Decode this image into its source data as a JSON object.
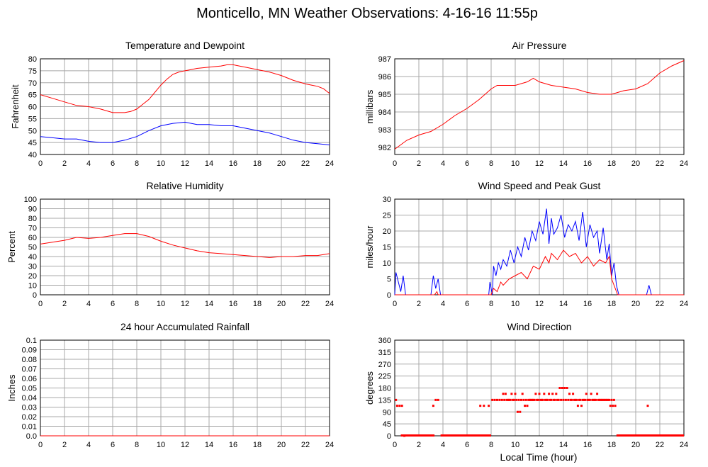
{
  "page_title": "Monticello, MN Weather Observations: 4-16-16 11:55p",
  "x_axis_label": "Local Time (hour)",
  "colors": {
    "red": "#ff0000",
    "blue": "#0000ff",
    "grid": "#a8a8a8"
  },
  "chart_data": [
    {
      "id": "temp",
      "type": "line",
      "title": "Temperature and Dewpoint",
      "ylabel": "Fahrenheit",
      "xlim": [
        0,
        24
      ],
      "x_ticks": [
        0,
        2,
        4,
        6,
        8,
        10,
        12,
        14,
        16,
        18,
        20,
        22,
        24
      ],
      "ylim": [
        40,
        80
      ],
      "y_ticks": [
        40,
        45,
        50,
        55,
        60,
        65,
        70,
        75,
        80
      ],
      "grid": true,
      "series": [
        {
          "color": "red",
          "x": [
            0,
            1,
            2,
            3,
            4,
            5,
            6,
            7,
            7.5,
            8,
            8.5,
            9,
            9.5,
            10,
            10.5,
            11,
            11.5,
            12,
            12.5,
            13,
            14,
            15,
            15.5,
            16,
            16.5,
            17,
            18,
            19,
            20,
            21,
            22,
            22.5,
            23,
            23.5,
            24
          ],
          "values": [
            65,
            63.5,
            62,
            60.5,
            60,
            59,
            57.5,
            57.5,
            58,
            59,
            61,
            63,
            66,
            69,
            71.5,
            73.5,
            74.5,
            75,
            75.5,
            76,
            76.5,
            77,
            77.5,
            77.5,
            77,
            76.5,
            75.5,
            74.5,
            73,
            71,
            69.5,
            69,
            68.5,
            67.5,
            65.5
          ]
        },
        {
          "color": "blue",
          "x": [
            0,
            1,
            2,
            3,
            4,
            5,
            6,
            7,
            8,
            9,
            10,
            11,
            12,
            13,
            14,
            15,
            16,
            17,
            18,
            19,
            20,
            21,
            22,
            23,
            24
          ],
          "values": [
            47.5,
            47,
            46.5,
            46.5,
            45.5,
            45,
            45,
            46,
            47.5,
            50,
            52,
            53,
            53.5,
            52.5,
            52.5,
            52,
            52,
            51,
            50,
            49,
            47.5,
            46,
            45,
            44.5,
            44
          ]
        }
      ]
    },
    {
      "id": "pressure",
      "type": "line",
      "title": "Air Pressure",
      "ylabel": "millibars",
      "xlim": [
        0,
        24
      ],
      "x_ticks": [
        0,
        2,
        4,
        6,
        8,
        10,
        12,
        14,
        16,
        18,
        20,
        22,
        24
      ],
      "ylim": [
        981.6,
        987
      ],
      "y_ticks": [
        982,
        983,
        984,
        985,
        986,
        987
      ],
      "grid": true,
      "series": [
        {
          "color": "red",
          "x": [
            0,
            1,
            2,
            3,
            4,
            5,
            6,
            7,
            8,
            8.5,
            9,
            10,
            11,
            11.5,
            12,
            13,
            14,
            15,
            16,
            17,
            18,
            19,
            20,
            21,
            22,
            23,
            24
          ],
          "values": [
            981.9,
            982.4,
            982.7,
            982.9,
            983.3,
            983.8,
            984.2,
            984.7,
            985.3,
            985.5,
            985.5,
            985.5,
            985.7,
            985.9,
            985.7,
            985.5,
            985.4,
            985.3,
            985.1,
            985.0,
            985.0,
            985.2,
            985.3,
            985.6,
            986.2,
            986.6,
            986.9
          ]
        }
      ]
    },
    {
      "id": "humidity",
      "type": "line",
      "title": "Relative Humidity",
      "ylabel": "Percent",
      "xlim": [
        0,
        24
      ],
      "x_ticks": [
        0,
        2,
        4,
        6,
        8,
        10,
        12,
        14,
        16,
        18,
        20,
        22,
        24
      ],
      "ylim": [
        0,
        100
      ],
      "y_ticks": [
        0,
        10,
        20,
        30,
        40,
        50,
        60,
        70,
        80,
        90,
        100
      ],
      "grid": true,
      "series": [
        {
          "color": "red",
          "x": [
            0,
            1,
            2,
            3,
            4,
            5,
            6,
            7,
            8,
            9,
            10,
            11,
            12,
            13,
            14,
            15,
            16,
            17,
            18,
            19,
            20,
            21,
            22,
            23,
            24
          ],
          "values": [
            53,
            55,
            57,
            60,
            59,
            60,
            62,
            64,
            64,
            61,
            56,
            52,
            49,
            46,
            44,
            43,
            42,
            41,
            40,
            39,
            40,
            40,
            41,
            41,
            43
          ]
        }
      ]
    },
    {
      "id": "wind",
      "type": "line",
      "title": "Wind Speed and Peak Gust",
      "ylabel": "miles/hour",
      "xlim": [
        0,
        24
      ],
      "x_ticks": [
        0,
        2,
        4,
        6,
        8,
        10,
        12,
        14,
        16,
        18,
        20,
        22,
        24
      ],
      "ylim": [
        0,
        30
      ],
      "y_ticks": [
        0,
        5,
        10,
        15,
        20,
        25,
        30
      ],
      "grid": true,
      "series": [
        {
          "color": "blue",
          "x": [
            0,
            0.1,
            0.3,
            0.5,
            0.7,
            0.9,
            3,
            3.2,
            3.4,
            3.6,
            3.8,
            7.8,
            7.9,
            8.1,
            8.2,
            8.4,
            8.6,
            8.8,
            9,
            9.3,
            9.6,
            9.9,
            10.2,
            10.5,
            10.8,
            11.1,
            11.4,
            11.7,
            12,
            12.3,
            12.6,
            12.8,
            13,
            13.2,
            13.5,
            13.8,
            14.1,
            14.4,
            14.7,
            15,
            15.3,
            15.6,
            15.9,
            16.2,
            16.5,
            16.8,
            17,
            17.3,
            17.6,
            17.8,
            18,
            18.2,
            18.4,
            18.6,
            20.9,
            21.1,
            21.3,
            24
          ],
          "values": [
            0,
            7,
            4,
            1,
            6,
            0,
            0,
            6,
            2,
            5,
            0,
            0,
            4,
            0,
            9,
            6,
            10,
            8,
            11,
            9,
            14,
            10,
            15,
            12,
            18,
            14,
            20,
            17,
            23,
            19,
            27,
            16,
            24,
            19,
            21,
            25,
            18,
            22,
            20,
            23,
            17,
            26,
            15,
            22,
            18,
            20,
            13,
            21,
            11,
            16,
            6,
            10,
            3,
            0,
            0,
            3,
            0,
            0
          ]
        },
        {
          "color": "red",
          "x": [
            0,
            3.3,
            3.5,
            3.6,
            8,
            8.2,
            8.5,
            8.8,
            9,
            9.5,
            10,
            10.5,
            11,
            11.5,
            12,
            12.5,
            12.8,
            13,
            13.5,
            14,
            14.5,
            15,
            15.5,
            16,
            16.5,
            17,
            17.5,
            17.8,
            18,
            18.2,
            18.5,
            24
          ],
          "values": [
            0,
            0,
            1,
            0,
            0,
            2,
            1,
            4,
            3,
            5,
            6,
            7,
            5,
            9,
            8,
            12,
            10,
            13,
            11,
            14,
            12,
            13,
            10,
            12,
            9,
            11,
            10,
            12,
            5,
            3,
            0,
            0
          ]
        }
      ]
    },
    {
      "id": "rain",
      "type": "line",
      "title": "24 hour Accumulated Rainfall",
      "ylabel": "Inches",
      "xlim": [
        0,
        24
      ],
      "x_ticks": [
        0,
        2,
        4,
        6,
        8,
        10,
        12,
        14,
        16,
        18,
        20,
        22,
        24
      ],
      "ylim": [
        0,
        0.1
      ],
      "y_ticks": [
        "0.0",
        "0.01",
        "0.02",
        "0.03",
        "0.04",
        "0.05",
        "0.06",
        "0.07",
        "0.08",
        "0.09",
        "0.1"
      ],
      "grid": true,
      "series": [
        {
          "color": "red",
          "x": [
            0,
            24
          ],
          "values": [
            0,
            0
          ]
        }
      ]
    },
    {
      "id": "direction",
      "type": "scatter",
      "title": "Wind Direction",
      "ylabel": "degrees",
      "xlabel": "Local Time (hour)",
      "xlim": [
        0,
        24
      ],
      "x_ticks": [
        0,
        2,
        4,
        6,
        8,
        10,
        12,
        14,
        16,
        18,
        20,
        22,
        24
      ],
      "ylim": [
        0,
        360
      ],
      "y_ticks": [
        0,
        45,
        90,
        135,
        180,
        225,
        270,
        315,
        360
      ],
      "grid": true,
      "series": [
        {
          "color": "red",
          "points": [
            [
              0.1,
              135
            ],
            [
              0.2,
              113
            ],
            [
              0.4,
              113
            ],
            [
              0.6,
              113
            ],
            [
              0.8,
              0
            ],
            [
              3.2,
              113
            ],
            [
              3.4,
              135
            ],
            [
              3.6,
              135
            ],
            [
              7.1,
              113
            ],
            [
              7.4,
              113
            ],
            [
              7.8,
              113
            ],
            [
              8.1,
              135
            ],
            [
              8.3,
              135
            ],
            [
              9,
              158
            ],
            [
              9.2,
              158
            ],
            [
              9.4,
              135
            ],
            [
              9.7,
              158
            ],
            [
              10,
              158
            ],
            [
              10.2,
              90
            ],
            [
              10.4,
              90
            ],
            [
              10.5,
              135
            ],
            [
              10.6,
              158
            ],
            [
              10.8,
              113
            ],
            [
              11,
              113
            ],
            [
              11.4,
              135
            ],
            [
              11.7,
              158
            ],
            [
              12,
              158
            ],
            [
              12.4,
              158
            ],
            [
              12.8,
              158
            ],
            [
              13.1,
              158
            ],
            [
              13.4,
              158
            ],
            [
              13.7,
              180
            ],
            [
              13.9,
              180
            ],
            [
              14.1,
              180
            ],
            [
              14.3,
              180
            ],
            [
              14.5,
              158
            ],
            [
              14.8,
              158
            ],
            [
              15.2,
              113
            ],
            [
              15.5,
              113
            ],
            [
              15.9,
              158
            ],
            [
              16.3,
              158
            ],
            [
              16.8,
              158
            ],
            [
              17.2,
              135
            ],
            [
              17.6,
              135
            ],
            [
              17.9,
              113
            ],
            [
              18.1,
              113
            ],
            [
              18.3,
              113
            ],
            [
              21,
              113
            ],
            [
              8.5,
              135
            ],
            [
              8.7,
              135
            ],
            [
              8.9,
              135
            ],
            [
              9.1,
              135
            ],
            [
              9.3,
              135
            ],
            [
              9.5,
              135
            ],
            [
              9.6,
              135
            ],
            [
              9.8,
              135
            ],
            [
              9.9,
              135
            ],
            [
              10.1,
              135
            ],
            [
              10.3,
              135
            ],
            [
              10.7,
              135
            ],
            [
              10.9,
              135
            ],
            [
              11.1,
              135
            ],
            [
              11.2,
              135
            ],
            [
              11.3,
              135
            ],
            [
              11.5,
              135
            ],
            [
              11.6,
              135
            ],
            [
              11.8,
              135
            ],
            [
              11.9,
              135
            ],
            [
              12.1,
              135
            ],
            [
              12.2,
              135
            ],
            [
              12.3,
              135
            ],
            [
              12.5,
              135
            ],
            [
              12.6,
              135
            ],
            [
              12.7,
              135
            ],
            [
              12.9,
              135
            ],
            [
              13,
              135
            ],
            [
              13.2,
              135
            ],
            [
              13.3,
              135
            ],
            [
              13.5,
              135
            ],
            [
              13.6,
              135
            ],
            [
              13.8,
              135
            ],
            [
              14,
              135
            ],
            [
              14.2,
              135
            ],
            [
              14.4,
              135
            ],
            [
              14.6,
              135
            ],
            [
              14.7,
              135
            ],
            [
              14.9,
              135
            ],
            [
              15,
              135
            ],
            [
              15.1,
              135
            ],
            [
              15.3,
              135
            ],
            [
              15.4,
              135
            ],
            [
              15.6,
              135
            ],
            [
              15.7,
              135
            ],
            [
              15.8,
              135
            ],
            [
              16,
              135
            ],
            [
              16.1,
              135
            ],
            [
              16.2,
              135
            ],
            [
              16.4,
              135
            ],
            [
              16.5,
              135
            ],
            [
              16.6,
              135
            ],
            [
              16.7,
              135
            ],
            [
              16.9,
              135
            ],
            [
              17,
              135
            ],
            [
              17.1,
              135
            ],
            [
              17.3,
              135
            ],
            [
              17.4,
              135
            ],
            [
              17.5,
              135
            ],
            [
              17.7,
              135
            ],
            [
              17.8,
              135
            ],
            [
              18,
              135
            ],
            [
              18.2,
              135
            ]
          ]
        }
      ],
      "zero_runs": [
        [
          0.5,
          3.3
        ],
        [
          3.8,
          8.0
        ],
        [
          18.4,
          24
        ]
      ]
    }
  ]
}
